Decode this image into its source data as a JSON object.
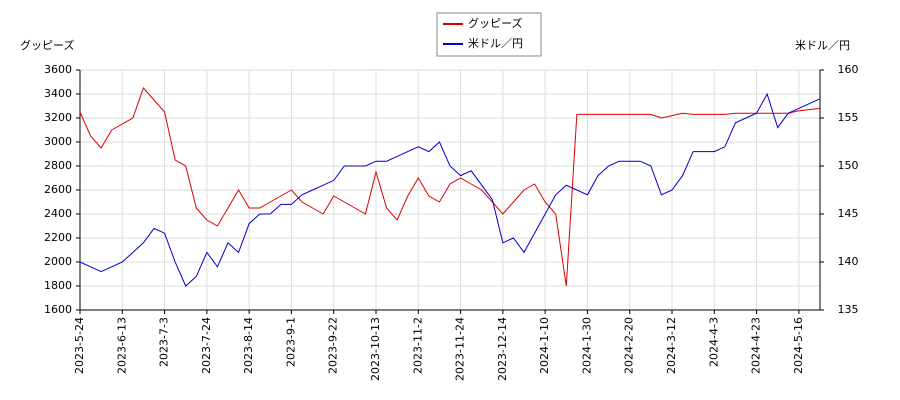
{
  "chart_data": {
    "type": "line",
    "y_label": "グッピーズ",
    "y2_label": "米ドル／円",
    "categories": [
      "2023-5-24",
      null,
      null,
      null,
      "2023-6-13",
      null,
      null,
      null,
      "2023-7-3",
      null,
      null,
      null,
      "2023-7-24",
      null,
      null,
      null,
      "2023-8-14",
      null,
      null,
      null,
      "2023-9-1",
      null,
      null,
      null,
      "2023-9-22",
      null,
      null,
      null,
      "2023-10-13",
      null,
      null,
      null,
      "2023-11-2",
      null,
      null,
      null,
      "2023-11-24",
      null,
      null,
      null,
      "2023-12-14",
      null,
      null,
      null,
      "2024-1-10",
      null,
      null,
      null,
      "2024-1-30",
      null,
      null,
      null,
      "2024-2-20",
      null,
      null,
      null,
      "2024-3-12",
      null,
      null,
      null,
      "2024-4-3",
      null,
      null,
      null,
      "2024-4-23",
      null,
      null,
      null,
      "2024-5-16",
      null,
      null
    ],
    "series": [
      {
        "name": "グッピーズ",
        "color": "#dd0000",
        "axis": "y",
        "values": [
          3250,
          3050,
          2950,
          3100,
          3150,
          3200,
          3450,
          3350,
          3250,
          2850,
          2800,
          2450,
          2350,
          2300,
          2450,
          2600,
          2450,
          2450,
          2500,
          2550,
          2600,
          2500,
          2450,
          2400,
          2550,
          2500,
          2450,
          2400,
          2750,
          2450,
          2350,
          2550,
          2700,
          2550,
          2500,
          2650,
          2700,
          2650,
          2600,
          2500,
          2400,
          2500,
          2600,
          2650,
          2500,
          2400,
          1800,
          3230,
          3230,
          3230,
          3230,
          3230,
          3230,
          3230,
          3230,
          3200,
          3220,
          3240,
          3230,
          3230,
          3230,
          3230,
          3240,
          3240,
          3240,
          3240,
          3240,
          3240,
          3260,
          3270,
          3280
        ]
      },
      {
        "name": "米ドル／円",
        "color": "#0000cc",
        "axis": "y2",
        "values": [
          140,
          139.5,
          139,
          139.5,
          140,
          141,
          142,
          143.5,
          143,
          140,
          137.5,
          138.5,
          141,
          139.5,
          142,
          141,
          144,
          145,
          145,
          146,
          146,
          147,
          147.5,
          148,
          148.5,
          150,
          150,
          150,
          150.5,
          150.5,
          151,
          151.5,
          152,
          151.5,
          152.5,
          150,
          149,
          149.5,
          148,
          146.5,
          142,
          142.5,
          141,
          143,
          145,
          147,
          148,
          147.5,
          147,
          149,
          150,
          150.5,
          150.5,
          150.5,
          150,
          147,
          147.5,
          149,
          151.5,
          151.5,
          151.5,
          152,
          154.5,
          155,
          155.5,
          157.5,
          154,
          155.5,
          156,
          156.5,
          157
        ]
      }
    ],
    "ylim": [
      1600,
      3600
    ],
    "yticks": [
      1600,
      1800,
      2000,
      2200,
      2400,
      2600,
      2800,
      3000,
      3200,
      3400,
      3600
    ],
    "y2lim": [
      135,
      160
    ],
    "y2ticks": [
      135,
      140,
      145,
      150,
      155,
      160
    ],
    "grid": true,
    "legend": "top"
  }
}
